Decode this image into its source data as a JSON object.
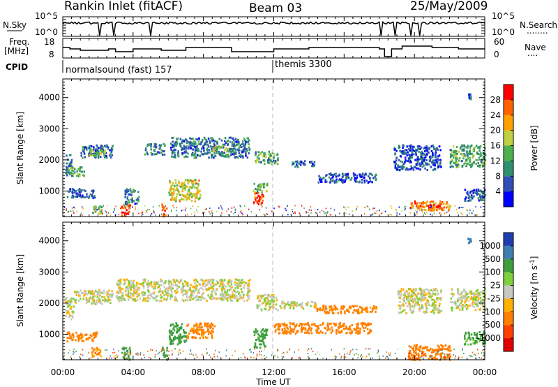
{
  "header": {
    "station": "Rankin Inlet (fitACF)",
    "beam": "Beam 03",
    "date": "25/May/2009"
  },
  "strip": {
    "nsky_label": "N.Sky",
    "nsearch_label": "N.Search",
    "nsearch_dots": "........",
    "freq_label": "Freq.",
    "freq_unit": "[MHz]",
    "cpid_label": "CPID",
    "nave_label": "Nave",
    "nave_dots": "....",
    "left_top_tick": "10^5",
    "left_bot_tick": "10^0",
    "right_top_tick": "10^5",
    "right_bot_tick": "10^0",
    "freq_top_tick": "18",
    "freq_bot_tick": "8",
    "nave_top_tick": "60",
    "nave_bot_tick": "0",
    "cpid_1": "normalsound (fast) 157",
    "cpid_2": "themis 3300"
  },
  "axes": {
    "ylabel": "Slant Range [km]",
    "xlabel": "Time UT",
    "y_ticks": [
      "1000",
      "2000",
      "3000",
      "4000"
    ],
    "x_ticks": [
      "00:00",
      "04:00",
      "08:00",
      "12:00",
      "16:00",
      "20:00",
      "00:00"
    ]
  },
  "colorbars": {
    "power_label": "Power [dB]",
    "power_ticks": [
      "4",
      "8",
      "12",
      "16",
      "20",
      "24",
      "28"
    ],
    "velocity_label": "Velocity [m s",
    "velocity_sup": "-1",
    "velocity_ticks": [
      "1000",
      "500",
      "100",
      "25",
      "-25",
      "-100",
      "-500",
      "-1000"
    ]
  },
  "colors": {
    "power": [
      "#0000ff",
      "#2f4fb6",
      "#2f8f6f",
      "#4fb04f",
      "#c0d040",
      "#ffa000",
      "#ff6000",
      "#ff0000"
    ],
    "velocity": [
      "#1f3faf",
      "#3f7fb0",
      "#3f9f3f",
      "#7fcf3f",
      "#c8c8c0",
      "#ffb000",
      "#ff8000",
      "#ff3f00",
      "#e00000"
    ]
  },
  "chart_data": [
    {
      "type": "heatmap",
      "title": "Power",
      "xlabel": "Time UT",
      "ylabel": "Slant Range [km]",
      "xlim": [
        0,
        24
      ],
      "ylim": [
        180,
        4600
      ],
      "colorbar": "Power [dB]",
      "colorbar_range": [
        0,
        30
      ],
      "regions": [
        {
          "t0": 0.1,
          "t1": 0.5,
          "r0": 1500,
          "r1": 2200,
          "value": 8
        },
        {
          "t0": 0.3,
          "t1": 1.2,
          "r0": 1500,
          "r1": 1800,
          "value": 12
        },
        {
          "t0": 1.0,
          "t1": 2.8,
          "r0": 2100,
          "r1": 2500,
          "value": 8
        },
        {
          "t0": 1.4,
          "t1": 2.4,
          "r0": 2150,
          "r1": 2350,
          "value": 14
        },
        {
          "t0": 0.2,
          "t1": 1.8,
          "r0": 800,
          "r1": 1100,
          "value": 6
        },
        {
          "t0": 1.6,
          "t1": 2.2,
          "r0": 300,
          "r1": 600,
          "value": 14
        },
        {
          "t0": 3.3,
          "t1": 3.8,
          "r0": 200,
          "r1": 600,
          "value": 26
        },
        {
          "t0": 3.5,
          "t1": 4.3,
          "r0": 600,
          "r1": 1100,
          "value": 8
        },
        {
          "t0": 4.6,
          "t1": 5.8,
          "r0": 2200,
          "r1": 2550,
          "value": 8
        },
        {
          "t0": 5.6,
          "t1": 5.9,
          "r0": 200,
          "r1": 600,
          "value": 24
        },
        {
          "t0": 6.0,
          "t1": 7.8,
          "r0": 700,
          "r1": 1400,
          "value": 18
        },
        {
          "t0": 6.1,
          "t1": 10.6,
          "r0": 2100,
          "r1": 2750,
          "value": 8
        },
        {
          "t0": 8.5,
          "t1": 9.4,
          "r0": 2300,
          "r1": 2500,
          "value": 14
        },
        {
          "t0": 10.8,
          "t1": 11.4,
          "r0": 600,
          "r1": 1000,
          "value": 26
        },
        {
          "t0": 10.8,
          "t1": 11.6,
          "r0": 1000,
          "r1": 1300,
          "value": 14
        },
        {
          "t0": 10.9,
          "t1": 12.2,
          "r0": 1900,
          "r1": 2300,
          "value": 12
        },
        {
          "t0": 13.0,
          "t1": 14.3,
          "r0": 1800,
          "r1": 2000,
          "value": 6
        },
        {
          "t0": 14.5,
          "t1": 17.8,
          "r0": 1300,
          "r1": 1600,
          "value": 6
        },
        {
          "t0": 19.7,
          "t1": 22.0,
          "r0": 400,
          "r1": 700,
          "value": 22
        },
        {
          "t0": 20.6,
          "t1": 21.6,
          "r0": 480,
          "r1": 620,
          "value": 28
        },
        {
          "t0": 18.8,
          "t1": 21.5,
          "r0": 1700,
          "r1": 2500,
          "value": 6
        },
        {
          "t0": 22.0,
          "t1": 24.0,
          "r0": 1800,
          "r1": 2500,
          "value": 12
        },
        {
          "t0": 22.8,
          "t1": 24.0,
          "r0": 700,
          "r1": 1100,
          "value": 6
        },
        {
          "t0": 23.0,
          "t1": 23.2,
          "r0": 3950,
          "r1": 4150,
          "value": 8
        }
      ]
    },
    {
      "type": "heatmap",
      "title": "Velocity",
      "xlabel": "Time UT",
      "ylabel": "Slant Range [km]",
      "xlim": [
        0,
        24
      ],
      "ylim": [
        180,
        4600
      ],
      "colorbar": "Velocity [m s-1]",
      "colorbar_range": [
        -1000,
        1000
      ],
      "regions": [
        {
          "t0": 0.1,
          "t1": 0.6,
          "r0": 1500,
          "r1": 2200,
          "value": 0
        },
        {
          "t0": 0.6,
          "t1": 2.8,
          "r0": 2000,
          "r1": 2450,
          "value": 0
        },
        {
          "t0": 0.2,
          "t1": 1.9,
          "r0": 800,
          "r1": 1100,
          "value": -150
        },
        {
          "t0": 1.6,
          "t1": 2.2,
          "r0": 300,
          "r1": 600,
          "value": -100
        },
        {
          "t0": 3.3,
          "t1": 3.8,
          "r0": 200,
          "r1": 600,
          "value": 200
        },
        {
          "t0": 5.6,
          "t1": 5.9,
          "r0": 200,
          "r1": 600,
          "value": 300
        },
        {
          "t0": 3.0,
          "t1": 10.6,
          "r0": 2100,
          "r1": 2800,
          "value": 0
        },
        {
          "t0": 6.0,
          "t1": 7.0,
          "r0": 700,
          "r1": 1400,
          "value": 200
        },
        {
          "t0": 7.0,
          "t1": 8.6,
          "r0": 900,
          "r1": 1400,
          "value": -150
        },
        {
          "t0": 10.8,
          "t1": 11.6,
          "r0": 600,
          "r1": 1200,
          "value": 150
        },
        {
          "t0": 11.0,
          "t1": 12.2,
          "r0": 1800,
          "r1": 2300,
          "value": 0
        },
        {
          "t0": 12.3,
          "t1": 14.4,
          "r0": 1850,
          "r1": 2100,
          "value": 0
        },
        {
          "t0": 14.4,
          "t1": 17.8,
          "r0": 1700,
          "r1": 1950,
          "value": -150
        },
        {
          "t0": 12.0,
          "t1": 17.6,
          "r0": 1050,
          "r1": 1400,
          "value": -250
        },
        {
          "t0": 19.6,
          "t1": 22.0,
          "r0": 200,
          "r1": 700,
          "value": -450
        },
        {
          "t0": 19.0,
          "t1": 21.5,
          "r0": 1700,
          "r1": 2500,
          "value": 0
        },
        {
          "t0": 22.0,
          "t1": 24.0,
          "r0": 1800,
          "r1": 2500,
          "value": 0
        },
        {
          "t0": 22.8,
          "t1": 24.0,
          "r0": 700,
          "r1": 1100,
          "value": 150
        },
        {
          "t0": 23.0,
          "t1": 23.2,
          "r0": 3950,
          "r1": 4150,
          "value": 800
        }
      ]
    }
  ]
}
